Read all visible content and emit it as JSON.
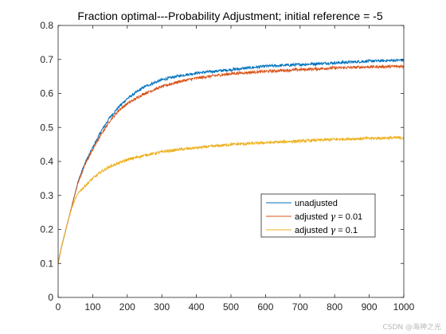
{
  "watermark": "CSDN @海神之光",
  "chart_data": {
    "type": "line",
    "title": "Fraction optimal---Probability Adjustment; initial reference = -5",
    "xlabel": "",
    "ylabel": "",
    "xlim": [
      0,
      1000
    ],
    "ylim": [
      0,
      0.8
    ],
    "x_ticks": [
      0,
      100,
      200,
      300,
      400,
      500,
      600,
      700,
      800,
      900,
      1000
    ],
    "x_tick_labels": [
      "0",
      "100",
      "200",
      "300",
      "400",
      "500",
      "600",
      "700",
      "800",
      "900",
      "1000"
    ],
    "y_ticks": [
      0,
      0.1,
      0.2,
      0.3,
      0.4,
      0.5,
      0.6,
      0.7,
      0.8
    ],
    "y_tick_labels": [
      "0",
      "0.1",
      "0.2",
      "0.3",
      "0.4",
      "0.5",
      "0.6",
      "0.7",
      "0.8"
    ],
    "grid": false,
    "legend_position": "right-lower-middle",
    "x": [
      0,
      10,
      20,
      30,
      40,
      50,
      60,
      80,
      100,
      125,
      150,
      175,
      200,
      250,
      300,
      350,
      400,
      450,
      500,
      600,
      700,
      800,
      900,
      1000
    ],
    "series": [
      {
        "name": "unadjusted",
        "prefix": "unadjusted",
        "gamma": "",
        "suffix": "",
        "color": "#0072BD",
        "values": [
          0.1,
          0.15,
          0.19,
          0.23,
          0.27,
          0.31,
          0.35,
          0.4,
          0.44,
          0.49,
          0.53,
          0.56,
          0.585,
          0.62,
          0.64,
          0.652,
          0.66,
          0.665,
          0.67,
          0.68,
          0.685,
          0.69,
          0.695,
          0.698
        ]
      },
      {
        "name": "adjusted γ = 0.01",
        "prefix": "adjusted ",
        "gamma": "γ",
        "suffix": " = 0.01",
        "color": "#D95319",
        "values": [
          0.1,
          0.15,
          0.19,
          0.23,
          0.27,
          0.31,
          0.345,
          0.395,
          0.435,
          0.48,
          0.52,
          0.55,
          0.57,
          0.6,
          0.62,
          0.635,
          0.645,
          0.652,
          0.658,
          0.665,
          0.67,
          0.675,
          0.678,
          0.68
        ]
      },
      {
        "name": "adjusted γ = 0.1",
        "prefix": "adjusted ",
        "gamma": "γ",
        "suffix": " = 0.1",
        "color": "#EDB120",
        "values": [
          0.1,
          0.15,
          0.19,
          0.23,
          0.265,
          0.29,
          0.31,
          0.33,
          0.35,
          0.37,
          0.385,
          0.395,
          0.405,
          0.418,
          0.428,
          0.435,
          0.44,
          0.445,
          0.45,
          0.455,
          0.46,
          0.465,
          0.468,
          0.47
        ]
      }
    ]
  }
}
